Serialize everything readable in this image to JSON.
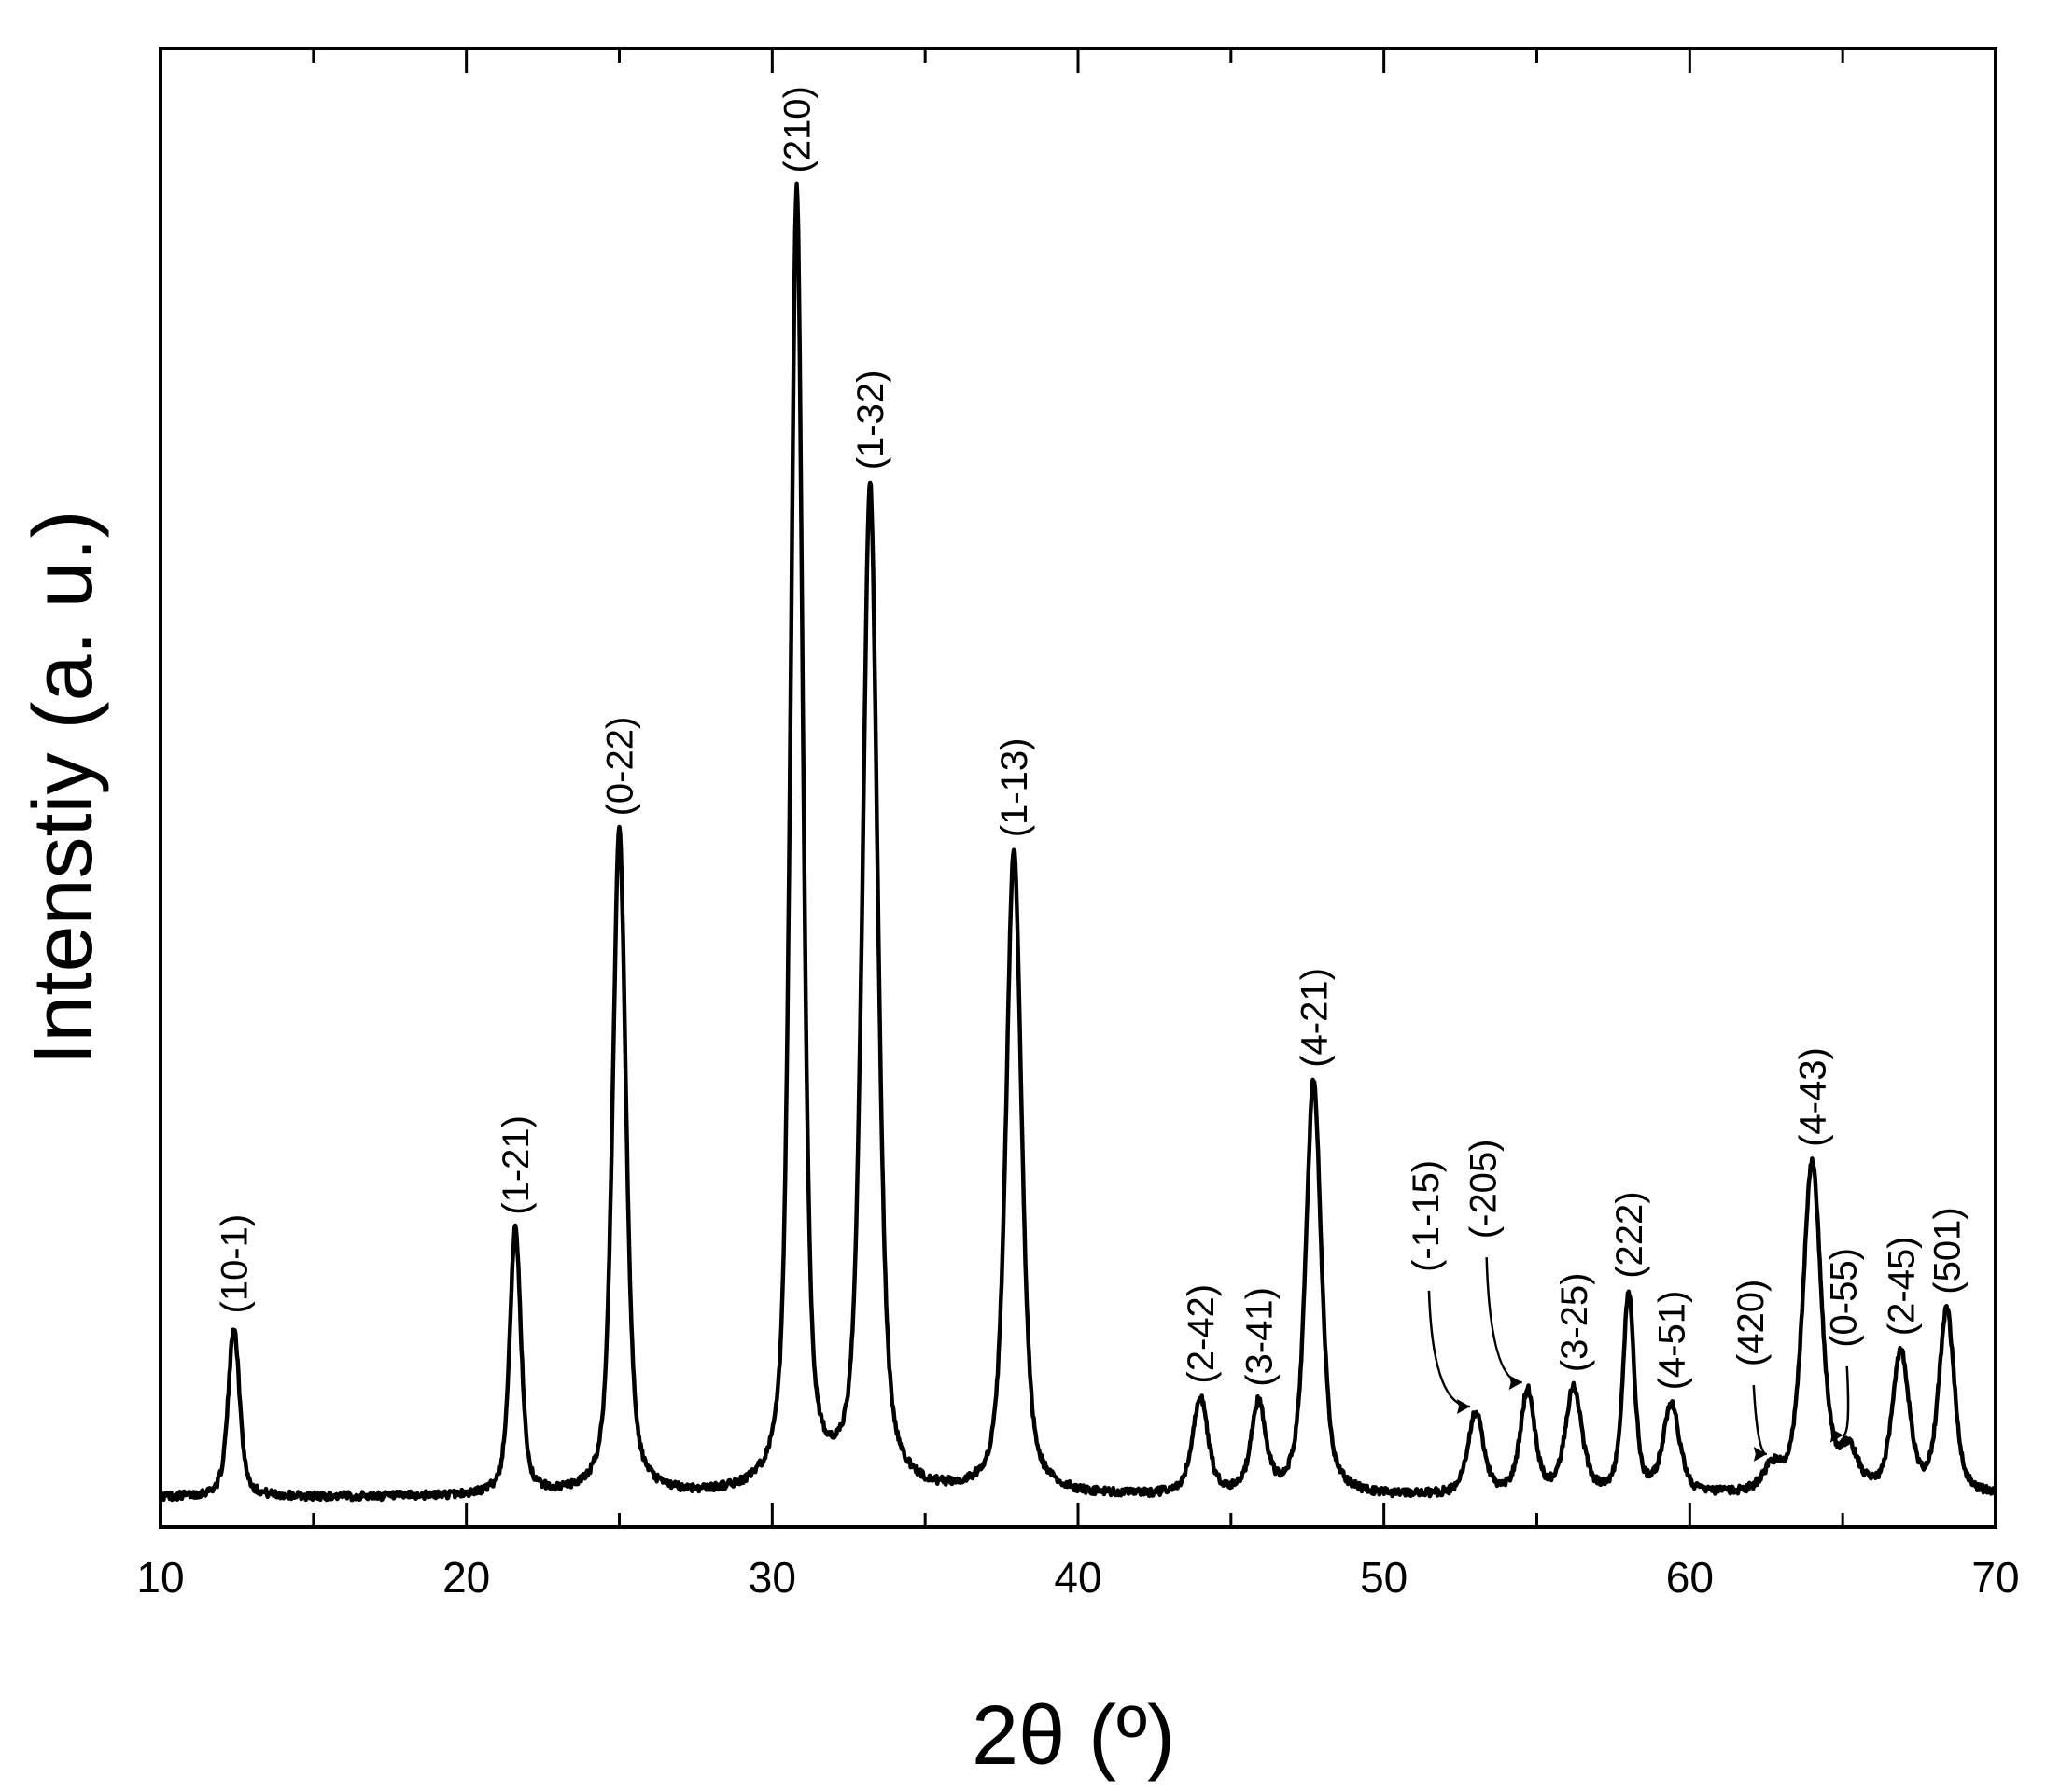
{
  "chart_data": {
    "type": "line",
    "title": "",
    "xlabel": "2θ (º)",
    "ylabel": "Intenstiy (a. u.)",
    "xlim": [
      10,
      70
    ],
    "ylim": [
      0,
      100
    ],
    "x_ticks": [
      10,
      20,
      30,
      40,
      50,
      60,
      70
    ],
    "y_ticks_shown": false,
    "grid": false,
    "legend": "none",
    "baseline": 2.0,
    "series": [
      {
        "peaks": [
          {
            "label": "(10-1)",
            "x": 12.4,
            "height": 11.5,
            "width": 0.22,
            "arrow": false
          },
          {
            "label": "(1-21)",
            "x": 21.6,
            "height": 18.0,
            "width": 0.22,
            "arrow": false
          },
          {
            "label": "(0-22)",
            "x": 25.0,
            "height": 45.0,
            "width": 0.26,
            "arrow": false
          },
          {
            "label": "(210)",
            "x": 30.8,
            "height": 88.0,
            "width": 0.24,
            "arrow": false
          },
          {
            "label": "(1-32)",
            "x": 33.2,
            "height": 68.0,
            "width": 0.3,
            "arrow": false
          },
          {
            "label": "(1-13)",
            "x": 37.9,
            "height": 43.5,
            "width": 0.3,
            "arrow": false
          },
          {
            "label": "(2-42)",
            "x": 44.0,
            "height": 6.5,
            "width": 0.3,
            "arrow": false
          },
          {
            "label": "(3-41)",
            "x": 45.9,
            "height": 6.0,
            "width": 0.28,
            "arrow": false
          },
          {
            "label": "(4-21)",
            "x": 47.7,
            "height": 28.0,
            "width": 0.3,
            "arrow": false
          },
          {
            "label": "(-1-15)",
            "x": 53.0,
            "height": 5.5,
            "width": 0.3,
            "arrow": true
          },
          {
            "label": "(-205)",
            "x": 54.7,
            "height": 7.0,
            "width": 0.28,
            "arrow": true
          },
          {
            "label": "(3-25)",
            "x": 56.2,
            "height": 7.2,
            "width": 0.32,
            "arrow": false
          },
          {
            "label": "(222)",
            "x": 58.0,
            "height": 13.5,
            "width": 0.22,
            "arrow": false
          },
          {
            "label": "(4-51)",
            "x": 59.4,
            "height": 6.0,
            "width": 0.32,
            "arrow": false
          },
          {
            "label": "(420)",
            "x": 62.7,
            "height": 1.5,
            "width": 0.35,
            "arrow": true
          },
          {
            "label": "(4-43)",
            "x": 64.0,
            "height": 22.5,
            "width": 0.36,
            "arrow": false
          },
          {
            "label": "(0-55)",
            "x": 65.2,
            "height": 2.5,
            "width": 0.35,
            "arrow": true
          },
          {
            "label": "(2-45)",
            "x": 66.9,
            "height": 9.5,
            "width": 0.32,
            "arrow": false
          },
          {
            "label": "(501)",
            "x": 68.4,
            "height": 12.5,
            "width": 0.3,
            "arrow": false
          }
        ]
      }
    ]
  }
}
